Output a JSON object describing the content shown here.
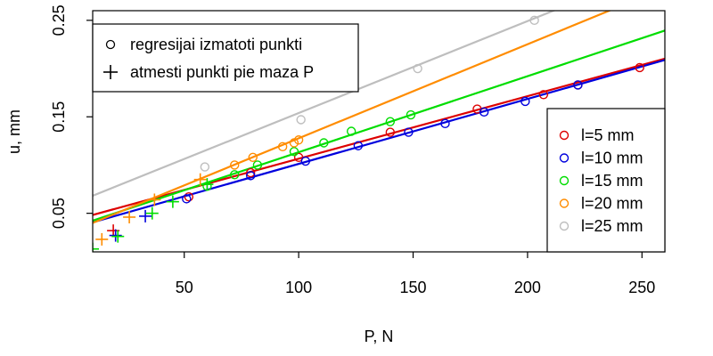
{
  "chart_data": {
    "type": "scatter",
    "xlabel": "P, N",
    "ylabel": "u, mm",
    "xlim": [
      10,
      260
    ],
    "ylim": [
      0.01,
      0.26
    ],
    "x_ticks": [
      50,
      100,
      150,
      200,
      250
    ],
    "y_ticks": [
      0.05,
      0.15,
      0.25
    ],
    "marker_legend": [
      {
        "symbol": "circle",
        "label": "regresijai izmatoti punkti"
      },
      {
        "symbol": "plus",
        "label": "atmesti punkti pie maza P"
      }
    ],
    "series": [
      {
        "name": "l=5 mm",
        "color": "#dd0000",
        "fit": {
          "slope": 0.000648,
          "intercept": 0.0418
        },
        "points": [
          [
            52,
            0.067
          ],
          [
            79,
            0.092
          ],
          [
            100,
            0.108
          ],
          [
            140,
            0.134
          ],
          [
            178,
            0.158
          ],
          [
            207,
            0.173
          ],
          [
            222,
            0.183
          ],
          [
            249,
            0.201
          ]
        ],
        "excluded": [
          [
            19,
            0.032
          ]
        ]
      },
      {
        "name": "l=10 mm",
        "color": "#0000dd",
        "fit": {
          "slope": 0.000673,
          "intercept": 0.0339
        },
        "points": [
          [
            51,
            0.065
          ],
          [
            79,
            0.089
          ],
          [
            103,
            0.104
          ],
          [
            126,
            0.12
          ],
          [
            148,
            0.134
          ],
          [
            164,
            0.143
          ],
          [
            181,
            0.155
          ],
          [
            199,
            0.166
          ],
          [
            222,
            0.183
          ]
        ],
        "excluded": [
          [
            20,
            0.027
          ],
          [
            33,
            0.047
          ]
        ]
      },
      {
        "name": "l=15 mm",
        "color": "#00dd00",
        "fit": {
          "slope": 0.000788,
          "intercept": 0.0345
        },
        "points": [
          [
            60,
            0.078
          ],
          [
            72,
            0.09
          ],
          [
            82,
            0.1
          ],
          [
            98,
            0.114
          ],
          [
            111,
            0.123
          ],
          [
            123,
            0.135
          ],
          [
            140,
            0.145
          ],
          [
            149,
            0.152
          ]
        ],
        "excluded": [
          [
            10,
            0.013
          ],
          [
            21,
            0.026
          ],
          [
            36,
            0.05
          ],
          [
            45,
            0.062
          ],
          [
            60,
            0.08
          ]
        ]
      },
      {
        "name": "l=20 mm",
        "color": "#ff8c00",
        "fit": {
          "slope": 0.000975,
          "intercept": 0.0302
        },
        "points": [
          [
            72,
            0.1
          ],
          [
            80,
            0.108
          ],
          [
            93,
            0.119
          ],
          [
            98,
            0.123
          ],
          [
            100,
            0.126
          ]
        ],
        "excluded": [
          [
            14,
            0.023
          ],
          [
            26,
            0.046
          ],
          [
            37,
            0.064
          ],
          [
            57,
            0.085
          ]
        ]
      },
      {
        "name": "l=25 mm",
        "color": "#bebebe",
        "fit": {
          "slope": 0.000953,
          "intercept": 0.0586
        },
        "points": [
          [
            59,
            0.098
          ],
          [
            101,
            0.147
          ],
          [
            152,
            0.2
          ],
          [
            203,
            0.25
          ]
        ],
        "excluded": []
      }
    ]
  }
}
